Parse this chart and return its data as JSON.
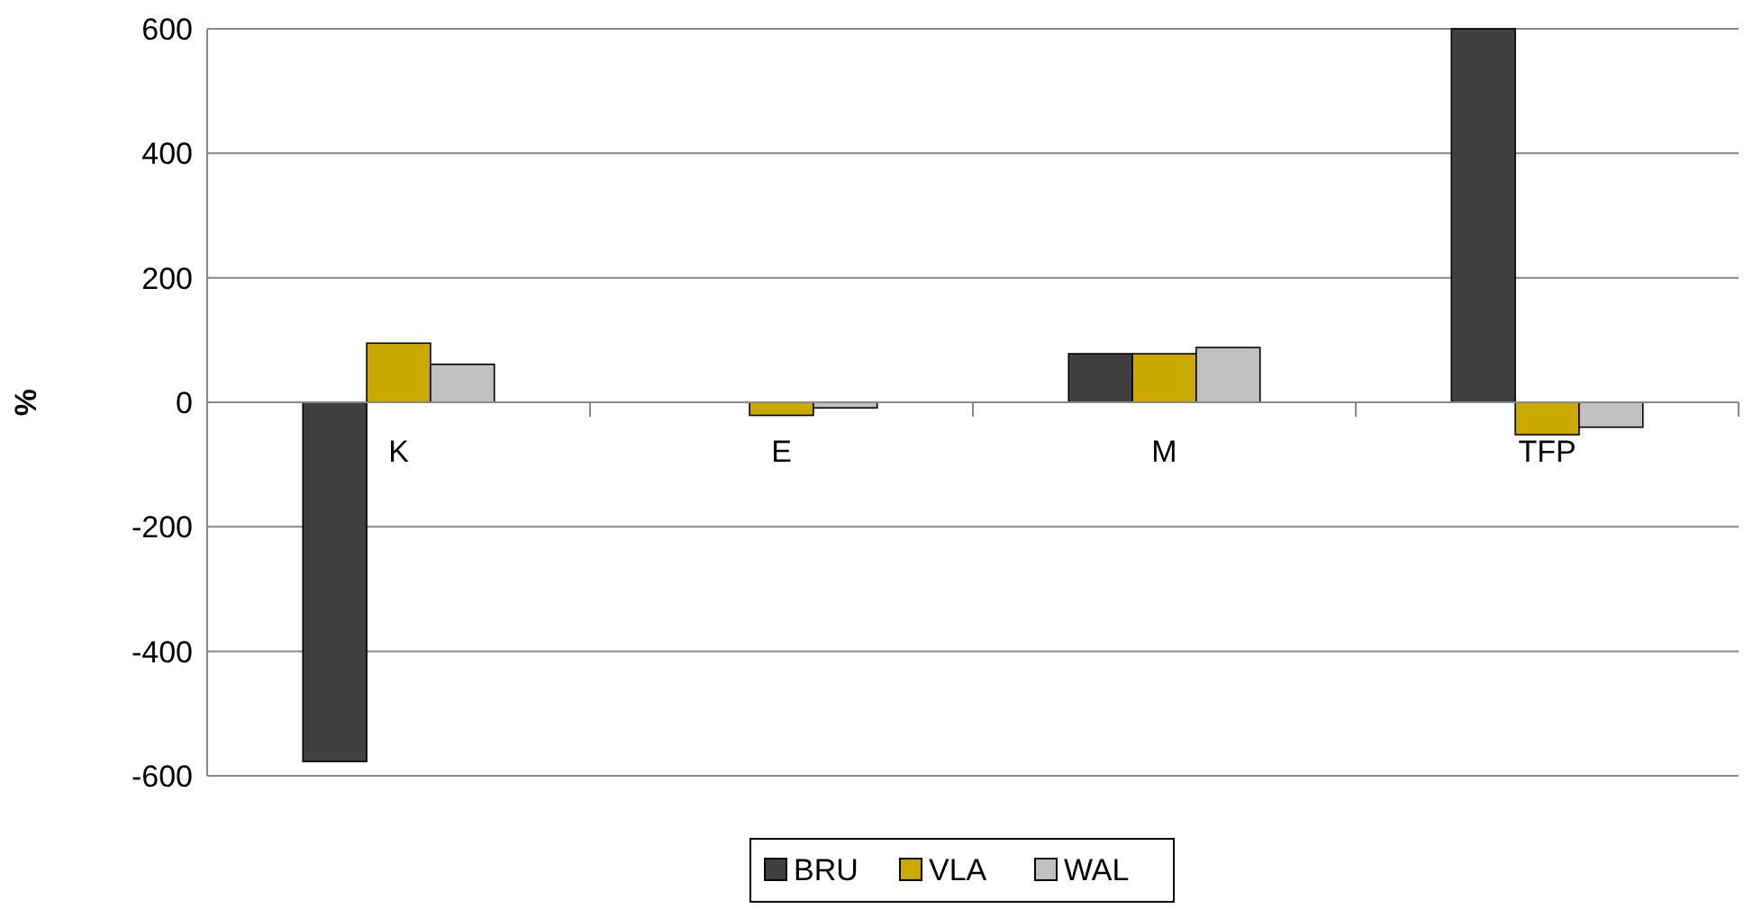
{
  "chart_data": {
    "type": "bar",
    "ylabel": "%",
    "categories": [
      "K",
      "E",
      "M",
      "TFP"
    ],
    "series": [
      {
        "name": "BRU",
        "color": "#404040",
        "values": [
          -577,
          null,
          78,
          600
        ]
      },
      {
        "name": "VLA",
        "color": "#c9a800",
        "values": [
          95,
          -21,
          78,
          -52
        ]
      },
      {
        "name": "WAL",
        "color": "#c0c0c0",
        "values": [
          61,
          -9,
          88,
          -40
        ]
      }
    ],
    "ylim": [
      -600,
      600
    ],
    "yticks": [
      -600,
      -400,
      -200,
      0,
      200,
      400,
      600
    ],
    "grid": "y",
    "legend": "bottom"
  }
}
